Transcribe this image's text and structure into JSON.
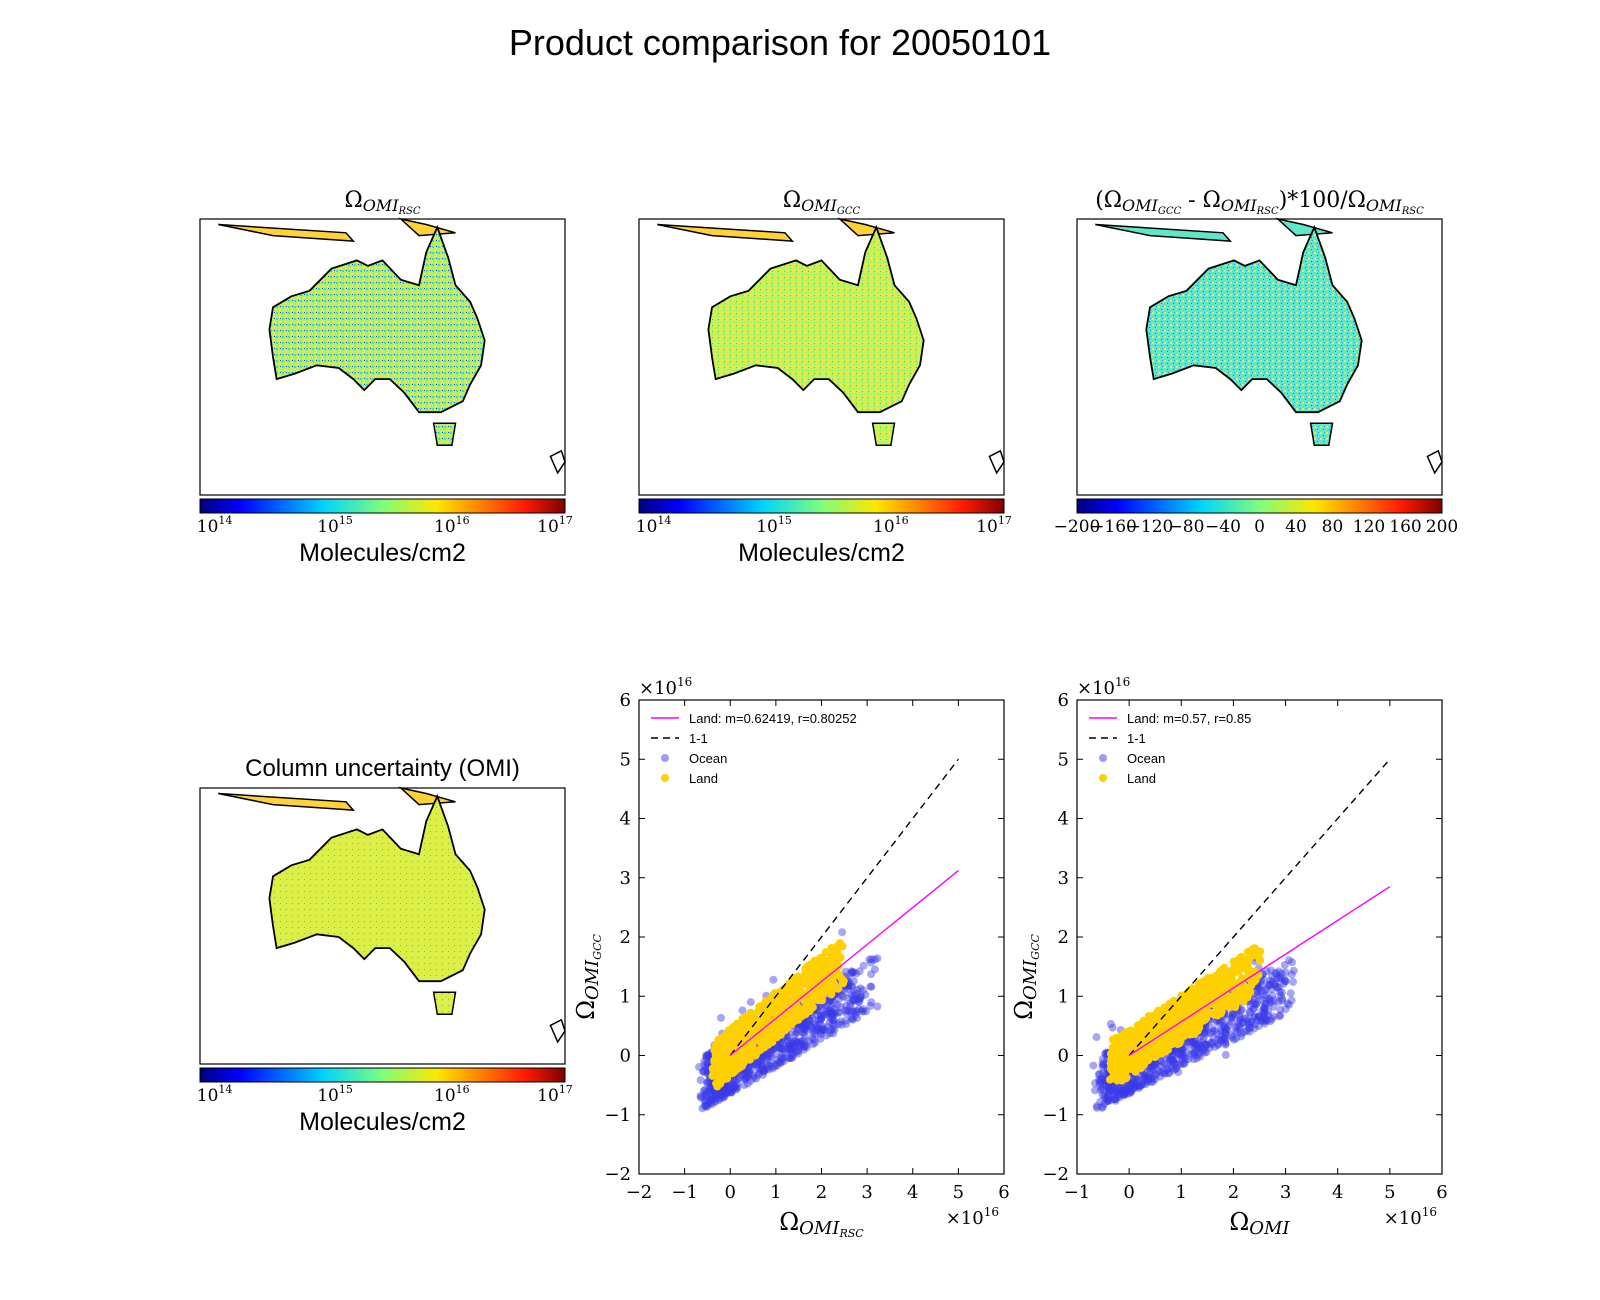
{
  "title": "Product comparison for 20050101",
  "maps": [
    {
      "id": "rsc",
      "title_sym": "Ω",
      "title_sub": "OMI",
      "title_sub2": "RSC",
      "colorbar": "log",
      "cbar_label": "Molecules/cm2",
      "cbar_ticks": [
        "10",
        "10",
        "10",
        "10"
      ],
      "cbar_exps": [
        "14",
        "15",
        "16",
        "17"
      ]
    },
    {
      "id": "gcc",
      "title_sym": "Ω",
      "title_sub": "OMI",
      "title_sub2": "GCC",
      "colorbar": "log",
      "cbar_label": "Molecules/cm2",
      "cbar_ticks": [
        "10",
        "10",
        "10",
        "10"
      ],
      "cbar_exps": [
        "14",
        "15",
        "16",
        "17"
      ]
    },
    {
      "id": "diff",
      "title_text": "(Ω",
      "title_mid": " - Ω",
      "title_tail": ")*100/Ω",
      "colorbar": "linear",
      "cbar_label": "",
      "cbar_ticks": [
        "−200",
        "−160",
        "−120",
        "−80",
        "−40",
        "0",
        "40",
        "80",
        "120",
        "160",
        "200"
      ]
    },
    {
      "id": "unc",
      "title": "Column uncertainty (OMI)",
      "colorbar": "log",
      "cbar_label": "Molecules/cm2",
      "cbar_ticks": [
        "10",
        "10",
        "10",
        "10"
      ],
      "cbar_exps": [
        "14",
        "15",
        "16",
        "17"
      ]
    }
  ],
  "chart_data": [
    {
      "type": "scatter",
      "xlabel": "Ω OMI RSC",
      "ylabel": "Ω OMI GCC",
      "x_multiplier": "×10",
      "x_multiplier_exp": "16",
      "y_multiplier": "×10",
      "y_multiplier_exp": "16",
      "xlim": [
        -2,
        6
      ],
      "ylim": [
        -2,
        6
      ],
      "xticks": [
        -2,
        -1,
        0,
        1,
        2,
        3,
        4,
        5,
        6
      ],
      "yticks": [
        -2,
        -1,
        0,
        1,
        2,
        3,
        4,
        5,
        6
      ],
      "legend": [
        "Land: m=0.62419, r=0.80252",
        "1-1",
        "Ocean",
        "Land"
      ],
      "legend_position": "top-left",
      "fit": {
        "slope": 0.62419,
        "r": 0.80252,
        "x": [
          0,
          5
        ]
      },
      "one_to_one": {
        "x": [
          0,
          5
        ]
      },
      "colors": {
        "ocean": "#3a3ae8",
        "land": "#ffd000",
        "fit": "#ff00ff",
        "one": "#000000"
      }
    },
    {
      "type": "scatter",
      "xlabel": "Ω OMI",
      "ylabel": "Ω OMI GCC",
      "x_multiplier": "×10",
      "x_multiplier_exp": "16",
      "y_multiplier": "×10",
      "y_multiplier_exp": "16",
      "xlim": [
        -1,
        6
      ],
      "ylim": [
        -2,
        6
      ],
      "xticks": [
        -1,
        0,
        1,
        2,
        3,
        4,
        5,
        6
      ],
      "yticks": [
        -2,
        -1,
        0,
        1,
        2,
        3,
        4,
        5,
        6
      ],
      "legend": [
        "Land: m=0.57, r=0.85",
        "1-1",
        "Ocean",
        "Land"
      ],
      "legend_position": "top-left",
      "fit": {
        "slope": 0.57,
        "r": 0.85,
        "x": [
          0,
          5
        ]
      },
      "one_to_one": {
        "x": [
          0,
          5
        ]
      },
      "colors": {
        "ocean": "#3a3ae8",
        "land": "#ffd000",
        "fit": "#ff00ff",
        "one": "#000000"
      }
    }
  ]
}
